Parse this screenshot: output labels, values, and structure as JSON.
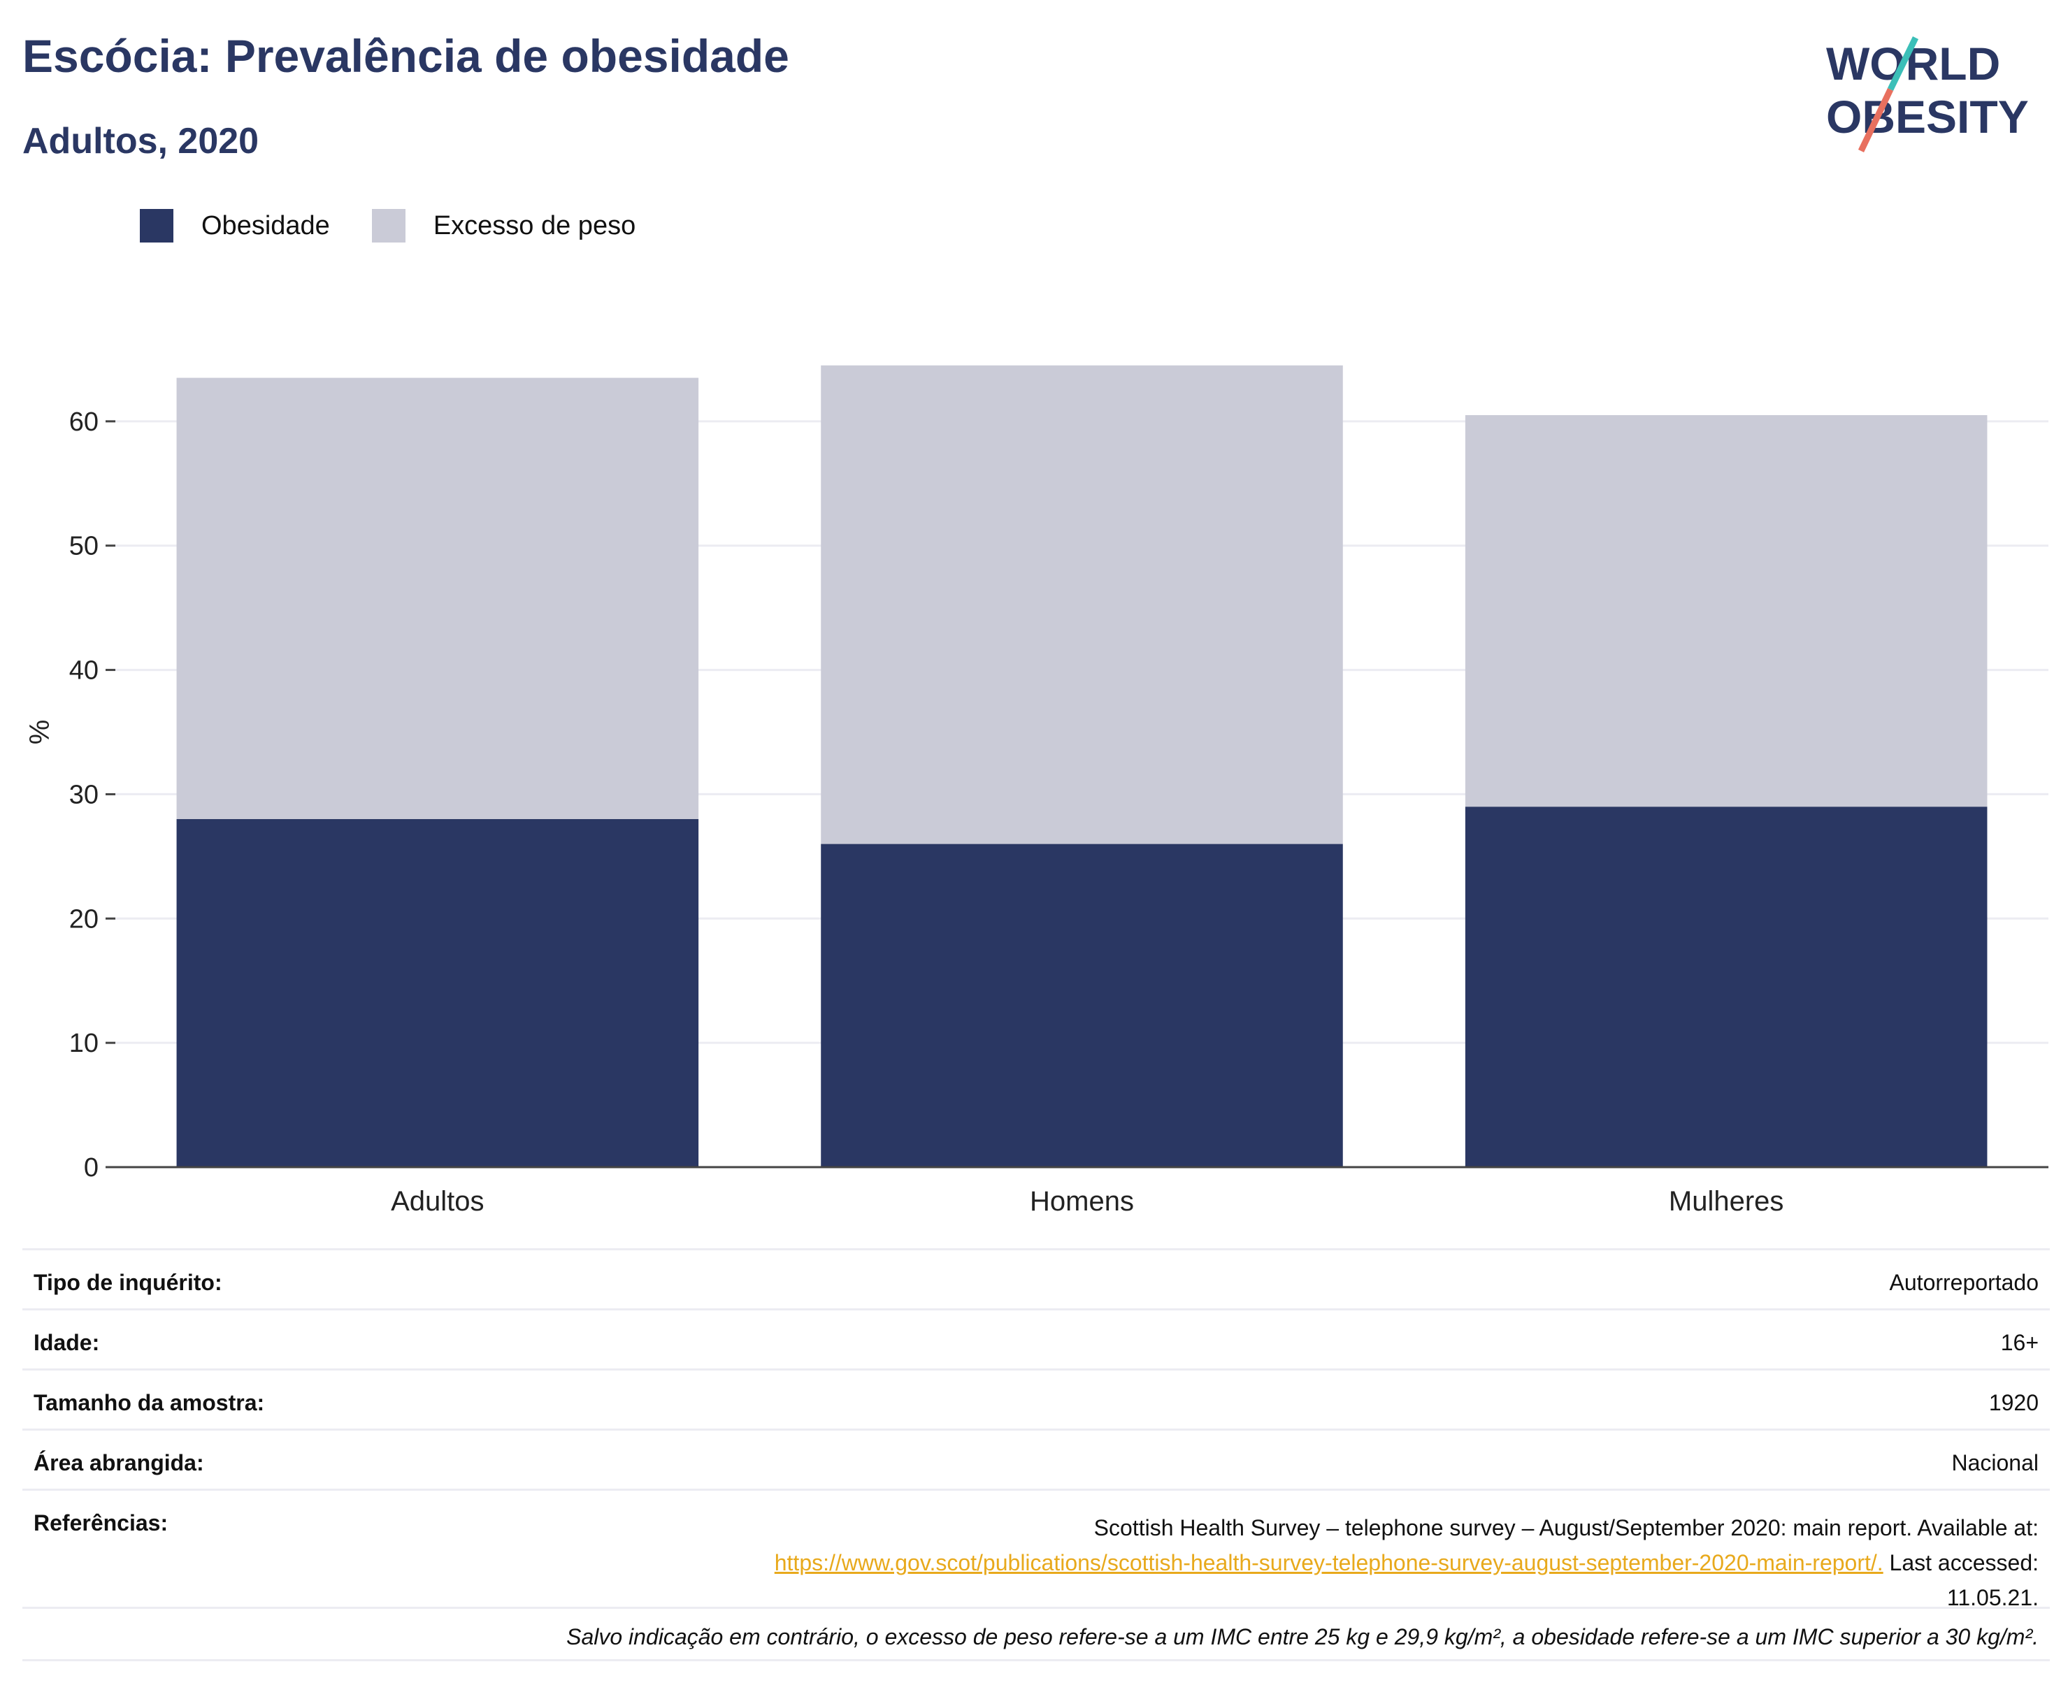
{
  "header": {
    "title": "Escócia: Prevalência de obesidade",
    "subtitle": "Adultos, 2020"
  },
  "logo": {
    "line1": "WORLD",
    "line2": "OBESITY"
  },
  "colors": {
    "obesity": "#2a3763",
    "overweight": "#cacbd7",
    "accent_teal": "#3bbfb8",
    "accent_coral": "#e8705f",
    "link": "#e8a91c"
  },
  "chart_data": {
    "type": "bar",
    "stacked": true,
    "categories": [
      "Adultos",
      "Homens",
      "Mulheres"
    ],
    "series": [
      {
        "name": "Obesidade",
        "values": [
          28,
          26,
          29
        ]
      },
      {
        "name": "Excesso de peso",
        "values": [
          35.5,
          38.5,
          31.5
        ]
      }
    ],
    "ylabel": "%",
    "ylim": [
      0,
      70
    ],
    "yticks": [
      0,
      10,
      20,
      30,
      40,
      50,
      60
    ],
    "grid": true,
    "legend": "top-left"
  },
  "info": {
    "rows": [
      {
        "label": "Tipo de inquérito:",
        "value": "Autorreportado"
      },
      {
        "label": "Idade:",
        "value": "16+"
      },
      {
        "label": "Tamanho da amostra:",
        "value": "1920"
      },
      {
        "label": "Área abrangida:",
        "value": "Nacional"
      }
    ],
    "references": {
      "label": "Referências:",
      "line1": "Scottish Health Survey – telephone survey – August/September 2020: main report. Available at:",
      "link": "https://www.gov.scot/publications/scottish-health-survey-telephone-survey-august-september-2020-main-report/.",
      "line2_suffix": " Last accessed:",
      "line3": "11.05.21."
    },
    "note": "Salvo indicação em contrário, o excesso de peso refere-se a um IMC entre 25 kg e 29,9 kg/m², a obesidade refere-se a um IMC superior a 30 kg/m²."
  }
}
